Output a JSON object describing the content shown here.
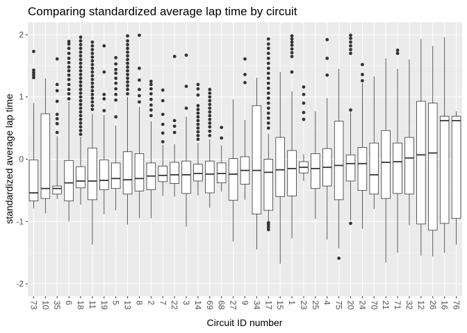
{
  "chart_data": {
    "type": "box",
    "title": "Comparing standardized average lap time by circuit",
    "xlabel": "Circuit ID number",
    "ylabel": "standardized average lap time",
    "ylim": [
      -2.2,
      2.2
    ],
    "yticks": [
      -2,
      -1,
      0,
      1,
      2
    ],
    "grid": true,
    "colors": {
      "panel": "#ebebeb",
      "grid_major": "#ffffff",
      "box_fill": "#ffffff",
      "box_line": "#333333",
      "text": "#4d4d4d"
    },
    "categories": [
      "73",
      "10",
      "35",
      "6",
      "18",
      "11",
      "19",
      "5",
      "13",
      "8",
      "2",
      "7",
      "22",
      "3",
      "14",
      "69",
      "68",
      "27",
      "9",
      "34",
      "17",
      "15",
      "1",
      "23",
      "25",
      "4",
      "75",
      "20",
      "24",
      "70",
      "21",
      "71",
      "32",
      "12",
      "26",
      "16",
      "76"
    ],
    "boxes": [
      {
        "q1": -0.67,
        "median": -0.54,
        "q3": -0.01,
        "low": -0.79,
        "high": 0.9,
        "outliers": [
          1.31,
          1.35,
          1.39,
          1.43,
          1.73
        ]
      },
      {
        "q1": -0.63,
        "median": -0.47,
        "q3": 0.73,
        "low": -0.87,
        "high": 1.3,
        "outliers": []
      },
      {
        "q1": -0.56,
        "median": -0.47,
        "q3": -0.43,
        "low": -0.64,
        "high": 0.37,
        "outliers": [
          0.43,
          0.57,
          0.65,
          0.72,
          0.93,
          1.1,
          1.2,
          1.61
        ]
      },
      {
        "q1": -0.67,
        "median": -0.38,
        "q3": -0.02,
        "low": -1.0,
        "high": 0.92,
        "outliers": [
          0.97,
          1.05,
          1.12,
          1.2,
          1.28,
          1.35,
          1.42,
          1.48,
          1.55,
          1.62,
          1.7,
          1.78,
          1.85,
          1.89
        ]
      },
      {
        "q1": -0.46,
        "median": -0.35,
        "q3": -0.12,
        "low": -0.73,
        "high": 0.36,
        "outliers": [
          0.4,
          0.46,
          0.52,
          0.58,
          0.64,
          0.7,
          0.76,
          0.82,
          0.88,
          0.94,
          1.0,
          1.06,
          1.12,
          1.18,
          1.24,
          1.3,
          1.36,
          1.42,
          1.48,
          1.54,
          1.6,
          1.66,
          1.72,
          1.78,
          1.84,
          1.9,
          1.96
        ]
      },
      {
        "q1": -0.65,
        "median": -0.35,
        "q3": 0.18,
        "low": -1.37,
        "high": 0.73,
        "outliers": [
          0.8,
          0.86,
          0.92,
          0.98,
          1.04,
          1.1,
          1.16,
          1.22,
          1.28,
          1.34,
          1.4,
          1.46,
          1.52,
          1.58,
          1.64,
          1.7,
          1.76,
          1.82,
          1.88
        ]
      },
      {
        "q1": -0.49,
        "median": -0.34,
        "q3": -0.01,
        "low": -0.88,
        "high": 0.71,
        "outliers": [
          0.78,
          0.97,
          1.04,
          1.4,
          1.82
        ]
      },
      {
        "q1": -0.47,
        "median": -0.31,
        "q3": -0.06,
        "low": -0.82,
        "high": 0.54,
        "outliers": [
          0.68,
          0.95,
          1.04,
          1.13,
          1.22,
          1.3,
          1.38,
          1.44,
          1.53,
          1.63
        ]
      },
      {
        "q1": -0.56,
        "median": -0.33,
        "q3": 0.12,
        "low": -1.05,
        "high": 1.0,
        "outliers": [
          1.05,
          1.12,
          1.18,
          1.24,
          1.3,
          1.36,
          1.42,
          1.48,
          1.54,
          1.6,
          1.66,
          1.72,
          1.78,
          1.84,
          1.9,
          1.98
        ]
      },
      {
        "q1": -0.51,
        "median": -0.31,
        "q3": 0.09,
        "low": -0.95,
        "high": 0.84,
        "outliers": [
          0.92,
          1.02,
          1.12,
          1.27,
          1.46,
          1.99
        ]
      },
      {
        "q1": -0.49,
        "median": -0.27,
        "q3": -0.06,
        "low": -0.95,
        "high": 0.61,
        "outliers": [
          0.7,
          0.79,
          0.87,
          0.96,
          1.05,
          1.13,
          1.2,
          1.25
        ]
      },
      {
        "q1": -0.36,
        "median": -0.26,
        "q3": -0.11,
        "low": -0.59,
        "high": 0.23,
        "outliers": [
          0.28,
          0.42,
          0.56,
          0.72,
          0.94,
          1.11
        ]
      },
      {
        "q1": -0.39,
        "median": -0.25,
        "q3": -0.05,
        "low": -0.6,
        "high": 0.24,
        "outliers": [
          0.43,
          0.53,
          0.62,
          1.65
        ]
      },
      {
        "q1": -0.55,
        "median": -0.25,
        "q3": -0.03,
        "low": -1.08,
        "high": 0.68,
        "outliers": [
          0.82,
          1.17,
          1.67
        ]
      },
      {
        "q1": -0.35,
        "median": -0.23,
        "q3": -0.08,
        "low": -0.58,
        "high": 0.26,
        "outliers": [
          0.32,
          0.38,
          0.44,
          0.5,
          0.56,
          0.62,
          0.68,
          0.74,
          0.8,
          0.86,
          1.03,
          1.13,
          1.2
        ]
      },
      {
        "q1": -0.54,
        "median": -0.24,
        "q3": -0.03,
        "low": -0.78,
        "high": 0.32,
        "outliers": [
          0.38,
          0.45,
          0.52,
          0.58,
          0.64,
          0.7,
          0.76,
          0.82,
          0.88,
          0.94,
          1.0,
          1.06,
          1.12
        ]
      },
      {
        "q1": -0.38,
        "median": -0.23,
        "q3": -0.06,
        "low": -0.52,
        "high": 0.22,
        "outliers": [
          0.34,
          0.51
        ]
      },
      {
        "q1": -0.66,
        "median": -0.24,
        "q3": 0.01,
        "low": -1.32,
        "high": 0.96,
        "outliers": []
      },
      {
        "q1": -0.4,
        "median": -0.18,
        "q3": 0.04,
        "low": -0.65,
        "high": 0.63,
        "outliers": [
          1.23,
          1.36,
          1.61
        ]
      },
      {
        "q1": -0.88,
        "median": -0.18,
        "q3": 0.86,
        "low": -1.45,
        "high": 1.31,
        "outliers": []
      },
      {
        "q1": -0.82,
        "median": -0.21,
        "q3": 0.0,
        "low": -0.99,
        "high": 0.41,
        "outliers": [
          -1.13,
          -1.09,
          -1.05,
          -1.02,
          0.5,
          0.58,
          0.66,
          0.74,
          0.82,
          0.9,
          0.98,
          1.06,
          1.14,
          1.22,
          1.3,
          1.38,
          1.46,
          1.54,
          1.62,
          1.7,
          1.78,
          1.85,
          1.93
        ]
      },
      {
        "q1": -0.6,
        "median": -0.17,
        "q3": 0.35,
        "low": -1.68,
        "high": 1.4,
        "outliers": []
      },
      {
        "q1": -0.59,
        "median": -0.15,
        "q3": 0.14,
        "low": -1.27,
        "high": 1.09,
        "outliers": [
          1.4,
          1.65,
          1.71,
          1.77,
          1.83,
          1.88,
          1.93,
          1.98
        ]
      },
      {
        "q1": -0.22,
        "median": -0.13,
        "q3": -0.04,
        "low": -0.35,
        "high": 0.08,
        "outliers": [
          0.64,
          0.75,
          0.9,
          1.04,
          1.16
        ]
      },
      {
        "q1": -0.47,
        "median": -0.15,
        "q3": 0.09,
        "low": -0.96,
        "high": 0.77,
        "outliers": []
      },
      {
        "q1": -0.43,
        "median": -0.13,
        "q3": 0.17,
        "low": -1.29,
        "high": 0.98,
        "outliers": [
          1.35,
          1.62,
          1.92
        ]
      },
      {
        "q1": -0.65,
        "median": -0.1,
        "q3": 0.61,
        "low": -1.43,
        "high": 1.45,
        "outliers": [
          -1.59
        ]
      },
      {
        "q1": -0.35,
        "median": -0.07,
        "q3": 0.07,
        "low": -0.98,
        "high": 0.76,
        "outliers": [
          -1.03,
          0.79,
          1.7,
          1.76,
          1.82,
          1.88,
          1.94,
          1.99
        ]
      },
      {
        "q1": -0.5,
        "median": -0.07,
        "q3": 0.19,
        "low": -1.12,
        "high": 1.22,
        "outliers": [
          1.26,
          1.36,
          1.52
        ]
      },
      {
        "q1": -0.56,
        "median": -0.25,
        "q3": 0.26,
        "low": -0.8,
        "high": 1.33,
        "outliers": []
      },
      {
        "q1": -0.63,
        "median": -0.05,
        "q3": 0.46,
        "low": -1.66,
        "high": 1.62,
        "outliers": []
      },
      {
        "q1": -0.55,
        "median": -0.04,
        "q3": 0.26,
        "low": -1.5,
        "high": 1.45,
        "outliers": [
          1.7,
          1.75
        ]
      },
      {
        "q1": -0.56,
        "median": 0.02,
        "q3": 0.35,
        "low": -1.06,
        "high": 1.6,
        "outliers": []
      },
      {
        "q1": -1.04,
        "median": 0.07,
        "q3": 0.93,
        "low": -1.55,
        "high": 1.93,
        "outliers": []
      },
      {
        "q1": -1.14,
        "median": 0.1,
        "q3": 0.9,
        "low": -1.56,
        "high": 1.82,
        "outliers": []
      },
      {
        "q1": -1.03,
        "median": 0.62,
        "q3": 0.69,
        "low": -1.5,
        "high": 1.96,
        "outliers": []
      },
      {
        "q1": -0.95,
        "median": 0.62,
        "q3": 0.69,
        "low": -1.37,
        "high": 0.77,
        "outliers": []
      }
    ]
  }
}
